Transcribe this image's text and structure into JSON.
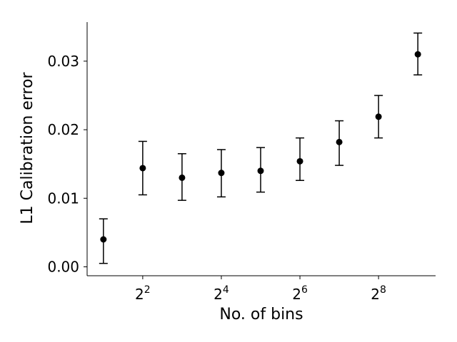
{
  "chart_data": {
    "type": "scatter",
    "title": "",
    "xlabel": "No. of bins",
    "ylabel": "L1 Calibration error",
    "x_scale": "log2",
    "x": [
      2,
      4,
      8,
      16,
      32,
      64,
      128,
      256,
      512
    ],
    "y": [
      0.004,
      0.0144,
      0.013,
      0.0137,
      0.014,
      0.0154,
      0.0182,
      0.0219,
      0.031
    ],
    "y_lower": [
      0.0005,
      0.0105,
      0.0097,
      0.0102,
      0.0109,
      0.0126,
      0.0148,
      0.0188,
      0.028
    ],
    "y_upper": [
      0.007,
      0.0183,
      0.0165,
      0.0171,
      0.0174,
      0.0188,
      0.0213,
      0.025,
      0.0341
    ],
    "xlim": [
      1.5,
      700
    ],
    "ylim": [
      -0.0013,
      0.0357
    ],
    "xticks": [
      {
        "value": 4,
        "base": "2",
        "exp": "2"
      },
      {
        "value": 16,
        "base": "2",
        "exp": "4"
      },
      {
        "value": 64,
        "base": "2",
        "exp": "6"
      },
      {
        "value": 256,
        "base": "2",
        "exp": "8"
      }
    ],
    "yticks": [
      {
        "value": 0.0,
        "label": "0.00"
      },
      {
        "value": 0.01,
        "label": "0.01"
      },
      {
        "value": 0.02,
        "label": "0.02"
      },
      {
        "value": 0.03,
        "label": "0.03"
      }
    ],
    "grid": false,
    "marker_color": "#000000"
  }
}
